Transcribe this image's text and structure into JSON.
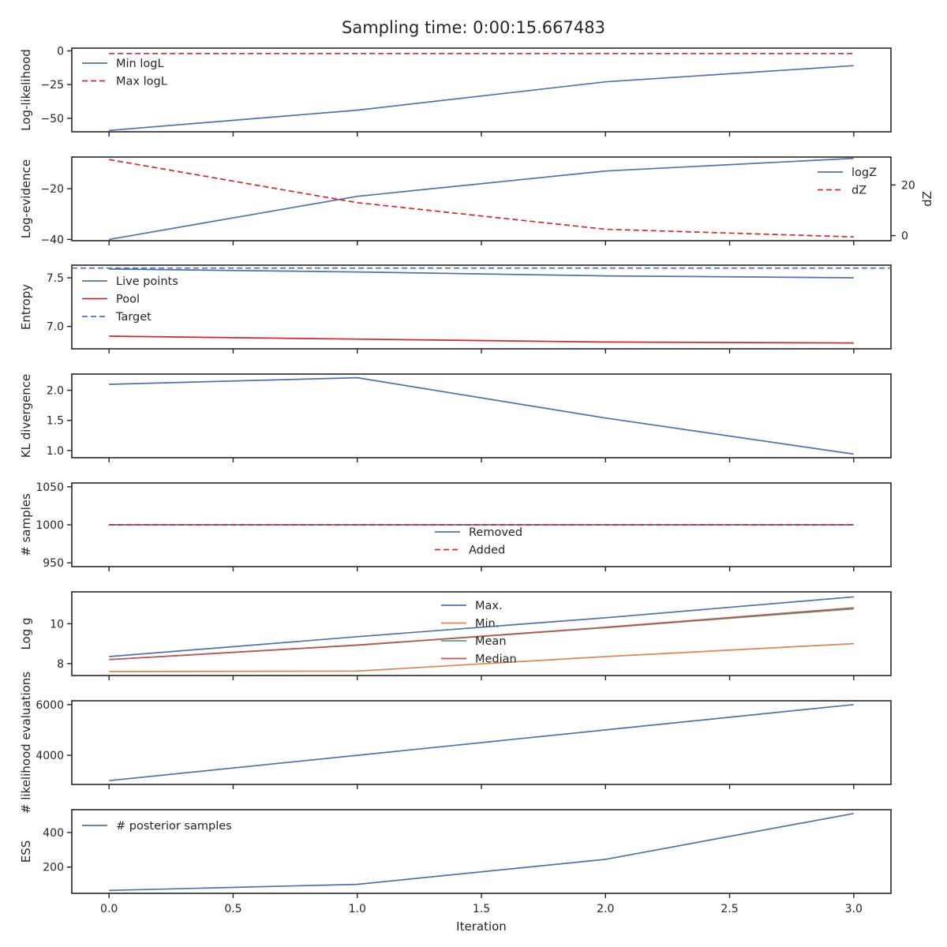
{
  "figure_title": "Sampling time: 0:00:15.667483",
  "chart_data": [
    {
      "type": "line",
      "ylabel": "Log-likelihood",
      "x": [
        0,
        1,
        2,
        3
      ],
      "ylim": [
        -60,
        2
      ],
      "yticks": [
        0,
        -25,
        -50
      ],
      "ytick_labels": [
        "0",
        "−25",
        "−50"
      ],
      "legend": "upper left",
      "series": [
        {
          "name": "Min logL",
          "values": [
            -59,
            -44,
            -23,
            -11
          ],
          "color": "#4c72b0",
          "dash": "solid"
        },
        {
          "name": "Max logL",
          "values": [
            -2,
            -2,
            -2,
            -2
          ],
          "color": "#d62728",
          "dash": "dashed"
        }
      ]
    },
    {
      "type": "line",
      "ylabel": "Log-evidence",
      "ylabel_right": "dZ",
      "x": [
        0,
        1,
        2,
        3
      ],
      "ylim": [
        -40.5,
        -7.5
      ],
      "yticks": [
        -20,
        -40
      ],
      "ytick_labels": [
        "−20",
        "−40"
      ],
      "ylim_right": [
        -2,
        31
      ],
      "yticks_right": [
        20,
        0
      ],
      "ytick_labels_right": [
        "20",
        "0"
      ],
      "legend": "upper right",
      "series": [
        {
          "name": "logZ",
          "values": [
            -40,
            -23,
            -13,
            -8
          ],
          "color": "#4c72b0",
          "dash": "solid",
          "axis": "left"
        },
        {
          "name": "dZ",
          "values": [
            30,
            13,
            2.5,
            -0.5
          ],
          "color": "#d62728",
          "dash": "dashed",
          "axis": "right"
        }
      ]
    },
    {
      "type": "line",
      "ylabel": "Entropy",
      "x": [
        0,
        1,
        2,
        3
      ],
      "ylim": [
        6.77,
        7.63
      ],
      "yticks": [
        7.5,
        7.0
      ],
      "ytick_labels": [
        "7.5",
        "7.0"
      ],
      "legend": "upper left",
      "series": [
        {
          "name": "Live points",
          "values": [
            7.59,
            7.56,
            7.52,
            7.5
          ],
          "color": "#4c72b0",
          "dash": "solid"
        },
        {
          "name": "Pool",
          "values": [
            6.9,
            6.87,
            6.84,
            6.83
          ],
          "color": "#d62728",
          "dash": "solid"
        }
      ],
      "hlines": [
        {
          "name": "Target",
          "value": 7.6,
          "color": "#4c72b0",
          "dash": "dashed"
        }
      ]
    },
    {
      "type": "line",
      "ylabel": "KL divergence",
      "x": [
        0,
        1,
        2,
        3
      ],
      "ylim": [
        0.88,
        2.27
      ],
      "yticks": [
        2.0,
        1.5,
        1.0
      ],
      "ytick_labels": [
        "2.0",
        "1.5",
        "1.0"
      ],
      "series": [
        {
          "values": [
            2.1,
            2.21,
            1.54,
            0.94
          ],
          "color": "#4c72b0",
          "dash": "solid"
        }
      ]
    },
    {
      "type": "line",
      "ylabel": "# samples",
      "x": [
        0,
        1,
        2,
        3
      ],
      "ylim": [
        945,
        1055
      ],
      "yticks": [
        1050,
        1000,
        950
      ],
      "ytick_labels": [
        "1050",
        "1000",
        "950"
      ],
      "legend": "lower center",
      "series": [
        {
          "name": "Removed",
          "values": [
            1000,
            1000,
            1000,
            1000
          ],
          "color": "#4c72b0",
          "dash": "solid"
        },
        {
          "name": "Added",
          "values": [
            1000,
            1000,
            1000,
            1000
          ],
          "color": "#d62728",
          "dash": "dashed"
        }
      ]
    },
    {
      "type": "line",
      "ylabel": "Log g",
      "x": [
        0,
        1,
        2,
        3
      ],
      "ylim": [
        7.4,
        11.6
      ],
      "yticks": [
        10,
        8
      ],
      "ytick_labels": [
        "10",
        "8"
      ],
      "legend": "upper center",
      "series": [
        {
          "name": "Max.",
          "values": [
            8.35,
            9.35,
            10.3,
            11.35
          ],
          "color": "#4c72b0",
          "dash": "solid"
        },
        {
          "name": "Min.",
          "values": [
            7.6,
            7.62,
            8.35,
            9.0
          ],
          "color": "#dd8452",
          "dash": "solid"
        },
        {
          "name": "Mean",
          "values": [
            8.2,
            8.92,
            9.8,
            10.75
          ],
          "color": "#55a868",
          "dash": "solid"
        },
        {
          "name": "Median",
          "values": [
            8.2,
            8.93,
            9.82,
            10.8
          ],
          "color": "#c44e52",
          "dash": "solid"
        }
      ]
    },
    {
      "type": "line",
      "ylabel": "# likelihood evaluations",
      "x": [
        0,
        1,
        2,
        3
      ],
      "ylim": [
        2850,
        6150
      ],
      "yticks": [
        6000,
        4000
      ],
      "ytick_labels": [
        "6000",
        "4000"
      ],
      "series": [
        {
          "values": [
            3000,
            4000,
            5000,
            6000
          ],
          "color": "#4c72b0",
          "dash": "solid"
        }
      ]
    },
    {
      "type": "line",
      "ylabel": "ESS",
      "xlabel": "Iteration",
      "x": [
        0,
        1,
        2,
        3
      ],
      "ylim": [
        48,
        532
      ],
      "yticks": [
        400,
        200
      ],
      "ytick_labels": [
        "400",
        "200"
      ],
      "xticks": [
        0,
        0.5,
        1.0,
        1.5,
        2.0,
        2.5,
        3.0
      ],
      "xtick_labels": [
        "0.0",
        "0.5",
        "1.0",
        "1.5",
        "2.0",
        "2.5",
        "3.0"
      ],
      "legend": "upper left",
      "series": [
        {
          "name": "# posterior samples",
          "values": [
            65,
            100,
            245,
            510
          ],
          "color": "#4c72b0",
          "dash": "solid"
        }
      ]
    }
  ]
}
